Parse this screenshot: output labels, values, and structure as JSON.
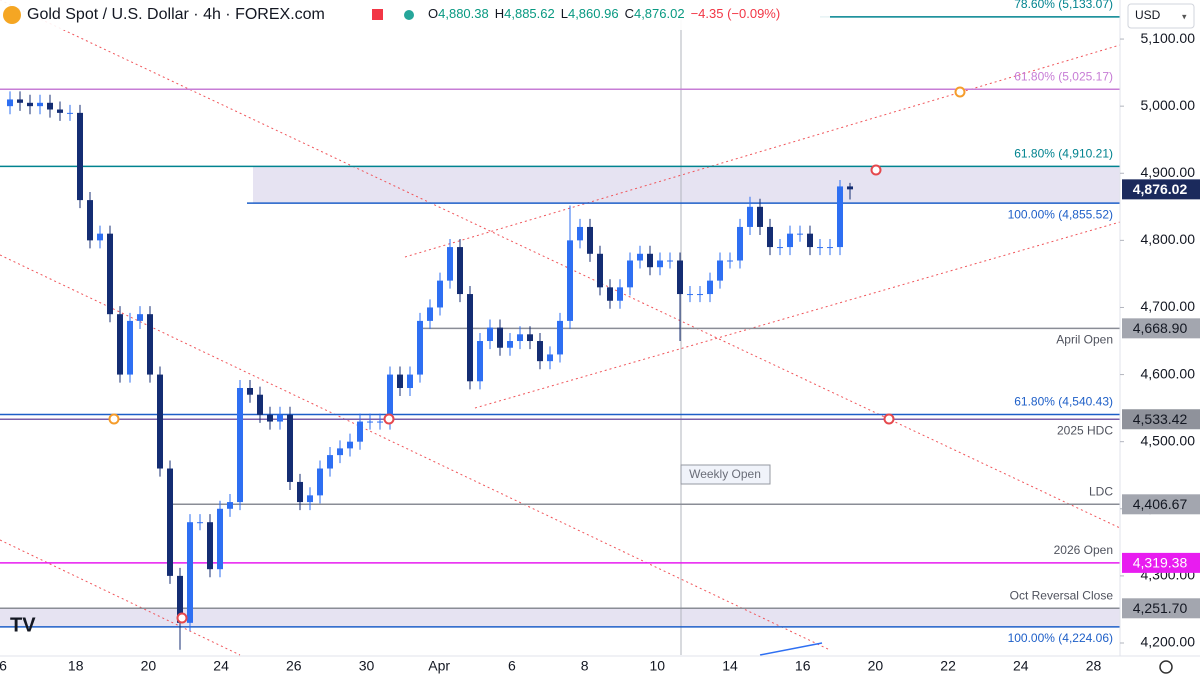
{
  "header": {
    "symbol": "Gold Spot / U.S. Dollar · 4h · FOREX.com",
    "ohlc": [
      {
        "key": "O",
        "text": "4,880.38"
      },
      {
        "key": "H",
        "text": "4,885.62"
      },
      {
        "key": "L",
        "text": "4,860.96"
      },
      {
        "key": "C",
        "text": "4,876.02"
      }
    ],
    "change": "−4.35 (−0.09%)",
    "currency": "USD"
  },
  "chart_data": {
    "type": "candlestick",
    "open": [
      5000,
      5010,
      5005,
      5000,
      5005,
      4995,
      4990,
      4990,
      4860,
      4800,
      4810,
      4690,
      4600,
      4680,
      4690,
      4600,
      4460,
      4300,
      4230,
      4380,
      4380,
      4310,
      4400,
      4410,
      4580,
      4570,
      4540,
      4530,
      4540,
      4440,
      4410,
      4420,
      4460,
      4480,
      4490,
      4500,
      4530,
      4530,
      4530,
      4600,
      4580,
      4600,
      4680,
      4700,
      4740,
      4790,
      4720,
      4590,
      4650,
      4670,
      4640,
      4650,
      4660,
      4650,
      4620,
      4630,
      4680,
      4800,
      4820,
      4780,
      4730,
      4710,
      4730,
      4770,
      4780,
      4760,
      4770,
      4770,
      4720,
      4720,
      4720,
      4740,
      4770,
      4770,
      4820,
      4850,
      4820,
      4790,
      4790,
      4810,
      4810,
      4790,
      4790,
      4790,
      4880.38
    ],
    "high": [
      5022,
      5022,
      5017,
      5017,
      5017,
      5007,
      5002,
      5002,
      4872,
      4822,
      4822,
      4702,
      4692,
      4702,
      4702,
      4612,
      4472,
      4312,
      4392,
      4392,
      4392,
      4412,
      4422,
      4592,
      4592,
      4582,
      4552,
      4552,
      4552,
      4452,
      4432,
      4472,
      4492,
      4502,
      4512,
      4542,
      4542,
      4542,
      4612,
      4612,
      4612,
      4692,
      4712,
      4752,
      4802,
      4802,
      4732,
      4662,
      4682,
      4682,
      4662,
      4672,
      4672,
      4662,
      4642,
      4692,
      4852,
      4832,
      4832,
      4792,
      4742,
      4742,
      4782,
      4792,
      4792,
      4782,
      4782,
      4782,
      4732,
      4732,
      4752,
      4782,
      4782,
      4832,
      4865,
      4862,
      4832,
      4802,
      4822,
      4822,
      4822,
      4802,
      4802,
      4890,
      4885.62
    ],
    "low": [
      4988,
      4993,
      4988,
      4988,
      4983,
      4978,
      4978,
      4848,
      4788,
      4788,
      4678,
      4588,
      4588,
      4668,
      4588,
      4448,
      4288,
      4190,
      4218,
      4368,
      4298,
      4298,
      4388,
      4398,
      4558,
      4528,
      4518,
      4518,
      4428,
      4398,
      4398,
      4408,
      4448,
      4468,
      4478,
      4488,
      4518,
      4518,
      4518,
      4568,
      4568,
      4588,
      4668,
      4688,
      4728,
      4708,
      4578,
      4578,
      4638,
      4628,
      4628,
      4638,
      4638,
      4608,
      4608,
      4618,
      4668,
      4788,
      4768,
      4718,
      4698,
      4698,
      4718,
      4758,
      4748,
      4748,
      4758,
      4650,
      4708,
      4708,
      4708,
      4728,
      4758,
      4758,
      4808,
      4808,
      4778,
      4778,
      4778,
      4798,
      4778,
      4778,
      4778,
      4778,
      4860.96
    ],
    "close": [
      5010,
      5005,
      5000,
      5005,
      4995,
      4990,
      4990,
      4860,
      4800,
      4810,
      4690,
      4600,
      4680,
      4690,
      4600,
      4460,
      4300,
      4230,
      4380,
      4380,
      4310,
      4400,
      4410,
      4580,
      4570,
      4540,
      4530,
      4540,
      4440,
      4410,
      4420,
      4460,
      4480,
      4490,
      4500,
      4530,
      4530,
      4530,
      4600,
      4580,
      4600,
      4680,
      4700,
      4740,
      4790,
      4720,
      4590,
      4650,
      4670,
      4640,
      4650,
      4660,
      4650,
      4620,
      4630,
      4680,
      4800,
      4820,
      4780,
      4730,
      4710,
      4730,
      4770,
      4780,
      4760,
      4770,
      4770,
      4720,
      4720,
      4720,
      4740,
      4770,
      4770,
      4820,
      4850,
      4820,
      4790,
      4790,
      4810,
      4810,
      4790,
      4790,
      4790,
      4880.38,
      4876.02
    ],
    "up_color": "#2e6ff2",
    "down_color": "#142d73",
    "x_labels": [
      "6",
      "18",
      "20",
      "24",
      "26",
      "30",
      "Apr",
      "6",
      "8",
      "10",
      "14",
      "16",
      "20",
      "22",
      "24",
      "28"
    ],
    "ylim": [
      4182.1,
      5158.2
    ],
    "yticks": [
      {
        "value": 5100,
        "label": "5,100.00"
      },
      {
        "value": 5000,
        "label": "5,000.00"
      },
      {
        "value": 4900,
        "label": "4,900.00"
      },
      {
        "value": 4800,
        "label": "4,800.00"
      },
      {
        "value": 4700,
        "label": "4,700.00"
      },
      {
        "value": 4600,
        "label": "4,600.00"
      },
      {
        "value": 4500,
        "label": "4,500.00"
      },
      {
        "value": 4400,
        "label": "4,400.00"
      },
      {
        "value": 4300,
        "label": "4,300.00"
      },
      {
        "value": 4200,
        "label": "4,200.00"
      }
    ],
    "last_price": {
      "value": 4876.02,
      "label": "4,876.02",
      "color": "#1b2a5c"
    },
    "levels": [
      {
        "name": "78.60% (5,133.07)",
        "value": 5133.07,
        "color": "#00838f",
        "label_pos": "above"
      },
      {
        "name": "61.80% (5,025.17)",
        "value": 5025.17,
        "color": "#c77dd6",
        "label_pos": "above"
      },
      {
        "name": "61.80% (4,910.21)",
        "value": 4910.21,
        "color": "#00838f",
        "label_pos": "above"
      },
      {
        "name": "100.00% (4,855.52)",
        "value": 4855.52,
        "color": "#1e5fc8",
        "label_pos": "below"
      },
      {
        "name": "April Open",
        "value": 4668.9,
        "price_label": "4,668.90",
        "color": "#8a8d96",
        "box": "#a3a6af",
        "label_pos": "below"
      },
      {
        "name": "61.80% (4,540.43)",
        "value": 4540.43,
        "color": "#1e5fc8",
        "label_pos": "above"
      },
      {
        "name": "2025 HDC",
        "value": 4533.42,
        "price_label": "4,533.42",
        "color": "#7b5fa8",
        "box": "#8f929b",
        "label_pos": "below"
      },
      {
        "name": "LDC",
        "value": 4406.67,
        "price_label": "4,406.67",
        "color": "#8a8d96",
        "box": "#a3a6af",
        "label_pos": "above"
      },
      {
        "name": "2026 Open",
        "value": 4319.38,
        "price_label": "4,319.38",
        "color": "#e81cf0",
        "box": "#e81cf0",
        "label_pos": "above"
      },
      {
        "name": "Oct Reversal Close",
        "value": 4251.7,
        "price_label": "4,251.70",
        "color": "#8a8d96",
        "box": "#a3a6af",
        "label_pos": "above"
      },
      {
        "name": "100.00% (4,224.06)",
        "value": 4224.06,
        "color": "#1e5fc8",
        "label_pos": "below"
      }
    ],
    "zones": [
      {
        "from": 4855.52,
        "to": 4910.21,
        "color": "#e6e3f2"
      },
      {
        "from": 4224.06,
        "to": 4251.7,
        "color": "#e6e3f2"
      }
    ],
    "annotation": "Weekly Open"
  }
}
